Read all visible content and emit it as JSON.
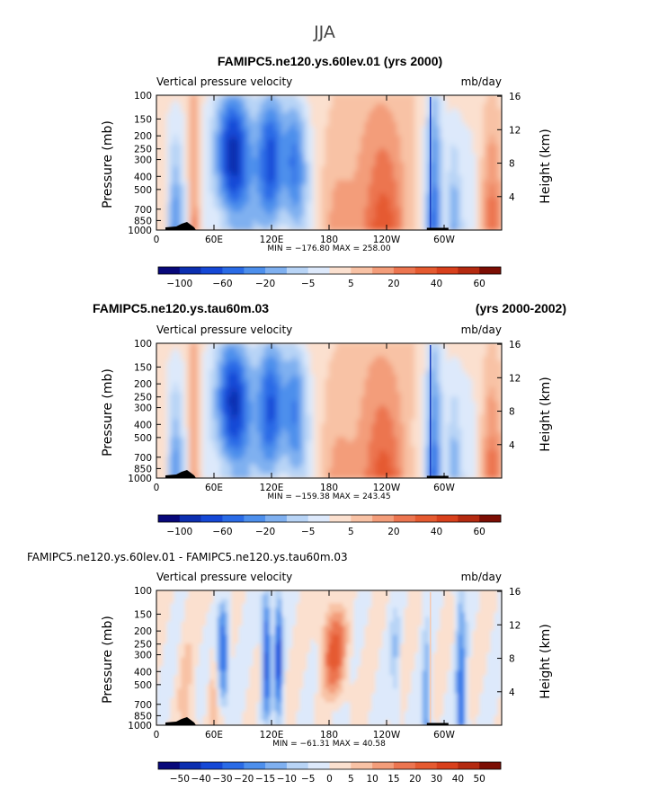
{
  "figure_title": "JJA",
  "colors": {
    "levels_12": [
      "#08087a",
      "#0c2fb0",
      "#1548d6",
      "#2a6be6",
      "#4d8fec",
      "#7fb0f0",
      "#b8d4f6",
      "#dde9fb",
      "#fbe0cf",
      "#f8c2a5",
      "#f39d7a",
      "#ec7550",
      "#e55a30",
      "#d8401c",
      "#b42a10",
      "#7c0e04"
    ],
    "background": "#ffffff"
  },
  "chart_data": [
    {
      "type": "heatmap",
      "title": "FAMIPC5.ne120.ys.60lev.01 (yrs 2000)",
      "subtitle_left": "Vertical pressure velocity",
      "subtitle_right": "mb/day",
      "xlabel": "",
      "ylabel": "Pressure (mb)",
      "ylabel_right": "Height (km)",
      "x_ticks": [
        "0",
        "60E",
        "120E",
        "180",
        "120W",
        "60W"
      ],
      "y_ticks": [
        "100",
        "150",
        "200",
        "250",
        "300",
        "400",
        "500",
        "700",
        "850",
        "1000"
      ],
      "y_ticks_right": [
        "16",
        "12",
        "8",
        "4"
      ],
      "stats": "MIN = −176.80   MAX = 258.00",
      "colorbar_labels": [
        "−100",
        "−60",
        "−20",
        "−5",
        "5",
        "20",
        "40",
        "60"
      ],
      "min": -176.8,
      "max": 258.0
    },
    {
      "type": "heatmap",
      "title": "FAMIPC5.ne120.ys.tau60m.03",
      "title_right": "(yrs 2000-2002)",
      "subtitle_left": "Vertical pressure velocity",
      "subtitle_right": "mb/day",
      "xlabel": "",
      "ylabel": "Pressure (mb)",
      "ylabel_right": "Height (km)",
      "x_ticks": [
        "0",
        "60E",
        "120E",
        "180",
        "120W",
        "60W"
      ],
      "y_ticks": [
        "100",
        "150",
        "200",
        "250",
        "300",
        "400",
        "500",
        "700",
        "850",
        "1000"
      ],
      "y_ticks_right": [
        "16",
        "12",
        "8",
        "4"
      ],
      "stats": "MIN = −159.38   MAX = 243.45",
      "colorbar_labels": [
        "−100",
        "−60",
        "−20",
        "−5",
        "5",
        "20",
        "40",
        "60"
      ],
      "min": -159.38,
      "max": 243.45
    },
    {
      "type": "heatmap",
      "title": "FAMIPC5.ne120.ys.60lev.01 - FAMIPC5.ne120.ys.tau60m.03",
      "subtitle_left": "Vertical pressure velocity",
      "subtitle_right": "mb/day",
      "xlabel": "",
      "ylabel": "Pressure (mb)",
      "ylabel_right": "Height (km)",
      "x_ticks": [
        "0",
        "60E",
        "120E",
        "180",
        "120W",
        "60W"
      ],
      "y_ticks": [
        "100",
        "150",
        "200",
        "250",
        "300",
        "400",
        "500",
        "700",
        "850",
        "1000"
      ],
      "y_ticks_right": [
        "16",
        "12",
        "8",
        "4"
      ],
      "stats": "MIN = −61.31   MAX =  40.58",
      "colorbar_labels": [
        "−50",
        "−40",
        "−30",
        "−20",
        "−15",
        "−10",
        "−5",
        "0",
        "5",
        "10",
        "15",
        "20",
        "30",
        "40",
        "50"
      ],
      "min": -61.31,
      "max": 40.58
    }
  ]
}
